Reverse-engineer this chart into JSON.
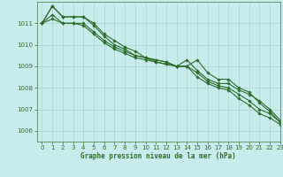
{
  "title": "Graphe pression niveau de la mer (hPa)",
  "background_color": "#c8ecec",
  "grid_color": "#a8d4d4",
  "line_color": "#2d6e2d",
  "spine_color": "#5a8a5a",
  "xlim": [
    -0.5,
    23
  ],
  "ylim": [
    1005.5,
    1012.0
  ],
  "yticks": [
    1006,
    1007,
    1008,
    1009,
    1010,
    1011
  ],
  "xticks": [
    0,
    1,
    2,
    3,
    4,
    5,
    6,
    7,
    8,
    9,
    10,
    11,
    12,
    13,
    14,
    15,
    16,
    17,
    18,
    19,
    20,
    21,
    22,
    23
  ],
  "xtick_labels": [
    "0",
    "1",
    "2",
    "3",
    "4",
    "5",
    "6",
    "7",
    "8",
    "9",
    "10",
    "11",
    "12",
    "13",
    "14",
    "15",
    "16",
    "17",
    "18",
    "19",
    "20",
    "21",
    "22",
    "23"
  ],
  "series": [
    [
      1011.0,
      1011.8,
      1011.3,
      1011.3,
      1011.3,
      1011.0,
      1010.5,
      1010.2,
      1009.9,
      1009.7,
      1009.4,
      1009.2,
      1009.1,
      1009.0,
      1009.0,
      1009.3,
      1008.7,
      1008.4,
      1008.4,
      1008.0,
      1007.8,
      1007.3,
      1006.9,
      1006.4
    ],
    [
      1011.0,
      1011.8,
      1011.3,
      1011.3,
      1011.3,
      1010.9,
      1010.4,
      1010.0,
      1009.8,
      1009.5,
      1009.4,
      1009.3,
      1009.2,
      1009.0,
      1009.0,
      1008.7,
      1008.3,
      1008.1,
      1008.0,
      1007.7,
      1007.4,
      1007.0,
      1006.8,
      1006.4
    ],
    [
      1011.0,
      1011.4,
      1011.0,
      1011.0,
      1011.0,
      1010.6,
      1010.2,
      1009.9,
      1009.7,
      1009.5,
      1009.4,
      1009.3,
      1009.2,
      1009.0,
      1009.3,
      1008.8,
      1008.4,
      1008.2,
      1008.2,
      1007.9,
      1007.7,
      1007.4,
      1007.0,
      1006.5
    ],
    [
      1011.0,
      1011.2,
      1011.0,
      1011.0,
      1010.9,
      1010.5,
      1010.1,
      1009.8,
      1009.6,
      1009.4,
      1009.3,
      1009.2,
      1009.1,
      1009.0,
      1009.0,
      1008.5,
      1008.2,
      1008.0,
      1007.9,
      1007.5,
      1007.2,
      1006.8,
      1006.6,
      1006.3
    ]
  ],
  "marker": "D",
  "markersize": 1.8,
  "linewidth": 0.8,
  "title_fontsize": 5.5,
  "tick_fontsize": 5.0
}
